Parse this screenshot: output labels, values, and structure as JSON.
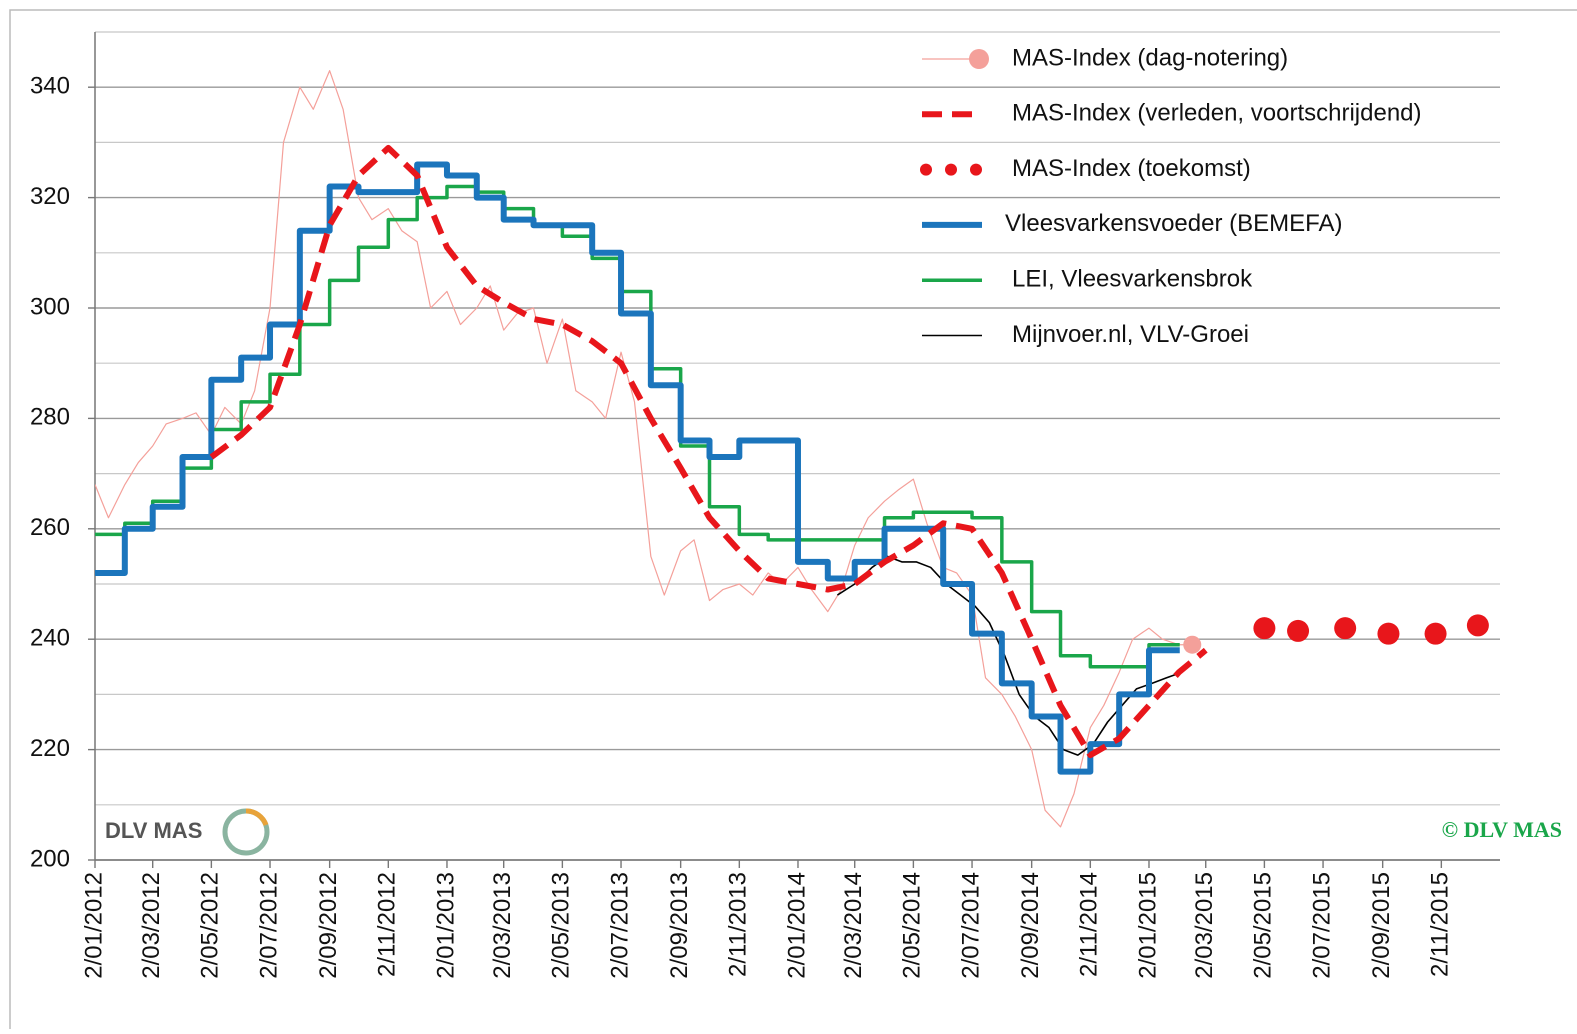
{
  "chart_data": {
    "type": "line",
    "xlim": [
      "2012-01-02",
      "2016-01-02"
    ],
    "xticks": [
      {
        "value": "2012-01-02",
        "label": "2/01/2012"
      },
      {
        "value": "2012-03-02",
        "label": "2/03/2012"
      },
      {
        "value": "2012-05-02",
        "label": "2/05/2012"
      },
      {
        "value": "2012-07-02",
        "label": "2/07/2012"
      },
      {
        "value": "2012-09-02",
        "label": "2/09/2012"
      },
      {
        "value": "2012-11-02",
        "label": "2/11/2012"
      },
      {
        "value": "2013-01-02",
        "label": "2/01/2013"
      },
      {
        "value": "2013-03-02",
        "label": "2/03/2013"
      },
      {
        "value": "2013-05-02",
        "label": "2/05/2013"
      },
      {
        "value": "2013-07-02",
        "label": "2/07/2013"
      },
      {
        "value": "2013-09-02",
        "label": "2/09/2013"
      },
      {
        "value": "2013-11-02",
        "label": "2/11/2013"
      },
      {
        "value": "2014-01-02",
        "label": "2/01/2014"
      },
      {
        "value": "2014-03-02",
        "label": "2/03/2014"
      },
      {
        "value": "2014-05-02",
        "label": "2/05/2014"
      },
      {
        "value": "2014-07-02",
        "label": "2/07/2014"
      },
      {
        "value": "2014-09-02",
        "label": "2/09/2014"
      },
      {
        "value": "2014-11-02",
        "label": "2/11/2014"
      },
      {
        "value": "2015-01-02",
        "label": "2/01/2015"
      },
      {
        "value": "2015-03-02",
        "label": "2/03/2015"
      },
      {
        "value": "2015-05-02",
        "label": "2/05/2015"
      },
      {
        "value": "2015-07-02",
        "label": "2/07/2015"
      },
      {
        "value": "2015-09-02",
        "label": "2/09/2015"
      },
      {
        "value": "2015-11-02",
        "label": "2/11/2015"
      }
    ],
    "ylim": [
      200,
      350
    ],
    "yticks": [
      200,
      220,
      240,
      260,
      280,
      300,
      320,
      340
    ],
    "ygrid_minor": [
      210,
      230,
      250,
      270,
      290,
      310,
      330,
      350
    ],
    "grid": true,
    "legend": "top-right",
    "logo_text": "DLV MAS",
    "copyright": "© DLV MAS",
    "series": [
      {
        "name": "MAS-Index (dag-notering)",
        "color": "#f4a09a",
        "style": "thin",
        "end_marker": true,
        "x": [
          "2012-01-02",
          "2012-01-16",
          "2012-02-02",
          "2012-02-16",
          "2012-03-02",
          "2012-03-16",
          "2012-04-02",
          "2012-04-16",
          "2012-05-02",
          "2012-05-16",
          "2012-06-02",
          "2012-06-16",
          "2012-07-02",
          "2012-07-16",
          "2012-08-02",
          "2012-08-16",
          "2012-09-02",
          "2012-09-16",
          "2012-10-02",
          "2012-10-16",
          "2012-11-02",
          "2012-11-16",
          "2012-12-02",
          "2012-12-16",
          "2013-01-02",
          "2013-01-16",
          "2013-02-02",
          "2013-02-16",
          "2013-03-02",
          "2013-03-16",
          "2013-04-02",
          "2013-04-16",
          "2013-05-02",
          "2013-05-16",
          "2013-06-02",
          "2013-06-16",
          "2013-07-02",
          "2013-07-16",
          "2013-08-02",
          "2013-08-16",
          "2013-09-02",
          "2013-09-16",
          "2013-10-02",
          "2013-10-16",
          "2013-11-02",
          "2013-11-16",
          "2013-12-02",
          "2013-12-16",
          "2014-01-02",
          "2014-01-16",
          "2014-02-02",
          "2014-02-16",
          "2014-03-02",
          "2014-03-16",
          "2014-04-02",
          "2014-04-16",
          "2014-05-02",
          "2014-05-16",
          "2014-06-02",
          "2014-06-16",
          "2014-07-02",
          "2014-07-16",
          "2014-08-02",
          "2014-08-16",
          "2014-09-02",
          "2014-09-16",
          "2014-10-02",
          "2014-10-16",
          "2014-11-02",
          "2014-11-16",
          "2014-12-02",
          "2014-12-16",
          "2015-01-02",
          "2015-01-16",
          "2015-02-02",
          "2015-02-16"
        ],
        "values": [
          268,
          262,
          268,
          272,
          275,
          279,
          280,
          281,
          277,
          282,
          279,
          285,
          300,
          330,
          340,
          336,
          343,
          336,
          320,
          316,
          318,
          314,
          312,
          300,
          303,
          297,
          300,
          304,
          296,
          299,
          300,
          290,
          298,
          285,
          283,
          280,
          292,
          283,
          255,
          248,
          256,
          258,
          247,
          249,
          250,
          248,
          252,
          250,
          253,
          249,
          245,
          249,
          257,
          262,
          265,
          267,
          269,
          261,
          253,
          252,
          248,
          233,
          230,
          226,
          220,
          209,
          206,
          212,
          224,
          228,
          234,
          240,
          242,
          240,
          239,
          239
        ]
      },
      {
        "name": "MAS-Index (verleden, voortschrijdend)",
        "color": "#e8161b",
        "style": "dashed",
        "x": [
          "2012-05-02",
          "2012-06-02",
          "2012-07-02",
          "2012-08-02",
          "2012-09-02",
          "2012-10-02",
          "2012-11-02",
          "2012-12-02",
          "2013-01-02",
          "2013-02-02",
          "2013-03-02",
          "2013-04-02",
          "2013-05-02",
          "2013-06-02",
          "2013-07-02",
          "2013-08-02",
          "2013-09-02",
          "2013-10-02",
          "2013-11-02",
          "2013-12-02",
          "2014-01-02",
          "2014-02-02",
          "2014-03-02",
          "2014-04-02",
          "2014-05-02",
          "2014-06-02",
          "2014-07-02",
          "2014-08-02",
          "2014-09-02",
          "2014-10-02",
          "2014-11-02",
          "2014-12-02",
          "2015-01-02",
          "2015-02-02",
          "2015-03-02"
        ],
        "values": [
          273,
          277,
          282,
          297,
          315,
          324,
          329,
          324,
          311,
          304,
          301,
          298,
          297,
          294,
          290,
          280,
          271,
          262,
          256,
          251,
          250,
          249,
          250,
          254,
          257,
          261,
          260,
          252,
          240,
          228,
          219,
          222,
          228,
          234,
          238
        ]
      },
      {
        "name": "MAS-Index (toekomst)",
        "color": "#e8161b",
        "style": "dots",
        "x": [
          "2015-05-02",
          "2015-06-06",
          "2015-07-25",
          "2015-09-08",
          "2015-10-27",
          "2015-12-10"
        ],
        "values": [
          242,
          241.5,
          242,
          241,
          241,
          242.5
        ]
      },
      {
        "name": "Vleesvarkensvoeder (BEMEFA)",
        "color": "#1b75bc",
        "style": "step-thick",
        "x": [
          "2012-01-02",
          "2012-02-02",
          "2012-03-02",
          "2012-04-02",
          "2012-05-02",
          "2012-06-02",
          "2012-07-02",
          "2012-08-02",
          "2012-09-02",
          "2012-10-02",
          "2012-11-02",
          "2012-12-02",
          "2013-01-02",
          "2013-02-02",
          "2013-03-02",
          "2013-04-02",
          "2013-05-02",
          "2013-06-02",
          "2013-07-02",
          "2013-08-02",
          "2013-09-02",
          "2013-10-02",
          "2013-11-02",
          "2013-12-02",
          "2014-01-02",
          "2014-02-02",
          "2014-03-02",
          "2014-04-02",
          "2014-05-02",
          "2014-06-02",
          "2014-07-02",
          "2014-08-02",
          "2014-09-02",
          "2014-10-02",
          "2014-11-02",
          "2014-12-02",
          "2015-01-02",
          "2015-02-03"
        ],
        "values": [
          252,
          260,
          264,
          273,
          287,
          291,
          297,
          314,
          322,
          321,
          321,
          326,
          324,
          320,
          316,
          315,
          315,
          310,
          299,
          286,
          276,
          273,
          276,
          276,
          254,
          251,
          254,
          260,
          260,
          250,
          241,
          232,
          226,
          216,
          221,
          230,
          238,
          238
        ]
      },
      {
        "name": "LEI, Vleesvarkensbrok",
        "color": "#1aa64a",
        "style": "step",
        "x": [
          "2012-01-02",
          "2012-02-02",
          "2012-03-02",
          "2012-04-02",
          "2012-05-02",
          "2012-06-02",
          "2012-07-02",
          "2012-08-02",
          "2012-09-02",
          "2012-10-02",
          "2012-11-02",
          "2012-12-02",
          "2013-01-02",
          "2013-02-02",
          "2013-03-02",
          "2013-04-02",
          "2013-05-02",
          "2013-06-02",
          "2013-07-02",
          "2013-08-02",
          "2013-09-02",
          "2013-10-02",
          "2013-11-02",
          "2013-12-02",
          "2014-01-02",
          "2014-02-02",
          "2014-03-02",
          "2014-04-02",
          "2014-05-02",
          "2014-06-02",
          "2014-07-02",
          "2014-08-02",
          "2014-09-02",
          "2014-10-02",
          "2014-11-02",
          "2014-12-02",
          "2015-01-02",
          "2015-02-03"
        ],
        "values": [
          259,
          261,
          265,
          271,
          278,
          283,
          288,
          297,
          305,
          311,
          316,
          320,
          322,
          321,
          318,
          315,
          313,
          309,
          303,
          289,
          275,
          264,
          259,
          258,
          258,
          258,
          258,
          262,
          263,
          263,
          262,
          254,
          245,
          237,
          235,
          235,
          239,
          239
        ]
      },
      {
        "name": "Mijnvoer.nl, VLV-Groei",
        "color": "#000000",
        "style": "thin-black",
        "x": [
          "2014-02-12",
          "2014-03-02",
          "2014-03-20",
          "2014-04-05",
          "2014-04-20",
          "2014-05-05",
          "2014-05-20",
          "2014-06-05",
          "2014-06-20",
          "2014-07-05",
          "2014-07-20",
          "2014-08-05",
          "2014-08-20",
          "2014-09-05",
          "2014-09-20",
          "2014-10-05",
          "2014-10-20",
          "2014-11-05",
          "2014-11-20",
          "2014-12-05",
          "2014-12-20",
          "2015-01-05",
          "2015-01-20",
          "2015-02-05"
        ],
        "values": [
          248,
          250,
          253,
          255,
          254,
          254,
          253,
          250,
          248,
          246,
          243,
          237,
          230,
          226,
          224,
          220,
          219,
          221,
          225,
          228,
          231,
          232,
          233,
          234
        ]
      }
    ]
  }
}
